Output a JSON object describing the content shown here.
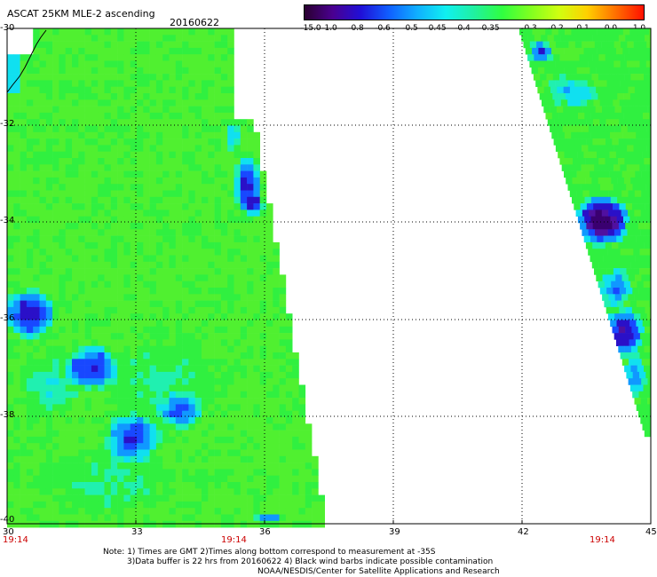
{
  "header": {
    "product": "ASCAT 25KM MLE-2 ascending",
    "date": "20160622"
  },
  "colorbar": {
    "labels": [
      "-15.0",
      "-1.0",
      "-0.8",
      "-0.6",
      "-0.5",
      "-0.45",
      "-0.4",
      "-0.35",
      "-0.3",
      "-0.2",
      "-0.1",
      "0.0",
      "1.0"
    ],
    "colors": [
      "#2a0030",
      "#4a0090",
      "#2010d8",
      "#1060ff",
      "#10b0ff",
      "#10f0f0",
      "#20f0a0",
      "#30ff40",
      "#80ff20",
      "#d0ff10",
      "#ffd000",
      "#ff7000",
      "#ff1000"
    ]
  },
  "map": {
    "lon_ticks": [
      "30",
      "33",
      "36",
      "39",
      "42",
      "45"
    ],
    "lat_ticks": [
      "-30",
      "-32",
      "-34",
      "-36",
      "-38",
      "-40"
    ],
    "lon_range": [
      30,
      45
    ],
    "lat_range": [
      -30,
      -40
    ],
    "pass_times": [
      "19:14",
      "19:14",
      "19:14"
    ]
  },
  "notes": {
    "line1": "Note: 1) Times are GMT 2)Times along bottom correspond to measurement at -35S",
    "line2": "3)Data buffer is 22 hrs from 20160622 4) Black wind barbs indicate possible contamination",
    "line3": "NOAA/NESDIS/Center for Satellite Applications and Research"
  },
  "colors": {
    "grid": "#000000",
    "time_label": "#cc0000"
  }
}
